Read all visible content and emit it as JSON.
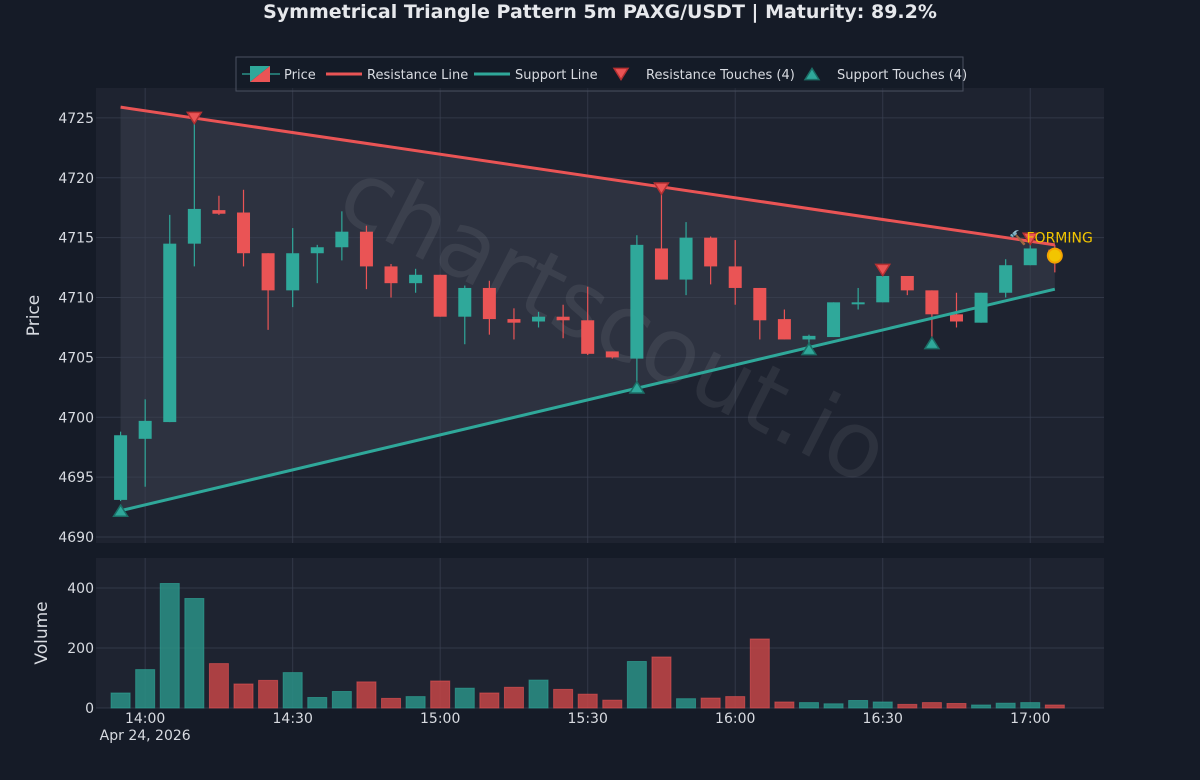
{
  "chart_data": {
    "type": "candlestick",
    "title": "Symmetrical Triangle Pattern 5m PAXG/USDT | Maturity: 89.2%",
    "watermark": "chartscout.io",
    "legend": {
      "placement": "top",
      "items": [
        "Price",
        "Resistance Line",
        "Support Line",
        "Resistance Touches (4)",
        "Support Touches (4)"
      ]
    },
    "price_panel": {
      "ylabel": "Price",
      "ylim": [
        4689.5,
        4727.5
      ],
      "yticks": [
        4690,
        4695,
        4700,
        4705,
        4710,
        4715,
        4720,
        4725
      ]
    },
    "volume_panel": {
      "ylabel": "Volume",
      "ylim": [
        0,
        500
      ],
      "yticks": [
        0,
        200,
        400
      ]
    },
    "x_axis": {
      "xlim": [
        "13:50",
        "17:15"
      ],
      "ticks": [
        {
          "t": "14:00",
          "label": "14:00",
          "sublabel": "Apr 24, 2026"
        },
        {
          "t": "14:30",
          "label": "14:30"
        },
        {
          "t": "15:00",
          "label": "15:00"
        },
        {
          "t": "15:30",
          "label": "15:30"
        },
        {
          "t": "16:00",
          "label": "16:00"
        },
        {
          "t": "16:30",
          "label": "16:30"
        },
        {
          "t": "17:00",
          "label": "17:00"
        }
      ]
    },
    "candles": [
      {
        "t": "13:55",
        "o": 4693.1,
        "h": 4698.8,
        "l": 4693.0,
        "c": 4698.5,
        "v": 50
      },
      {
        "t": "14:00",
        "o": 4698.2,
        "h": 4701.5,
        "l": 4694.2,
        "c": 4699.7,
        "v": 128
      },
      {
        "t": "14:05",
        "o": 4699.6,
        "h": 4716.9,
        "l": 4699.6,
        "c": 4714.5,
        "v": 415
      },
      {
        "t": "14:10",
        "o": 4714.5,
        "h": 4725.2,
        "l": 4712.6,
        "c": 4717.4,
        "v": 365
      },
      {
        "t": "14:15",
        "o": 4717.3,
        "h": 4718.5,
        "l": 4716.9,
        "c": 4717.0,
        "v": 148
      },
      {
        "t": "14:20",
        "o": 4717.1,
        "h": 4719.0,
        "l": 4712.6,
        "c": 4713.7,
        "v": 80
      },
      {
        "t": "14:25",
        "o": 4713.7,
        "h": 4713.7,
        "l": 4707.3,
        "c": 4710.6,
        "v": 92
      },
      {
        "t": "14:30",
        "o": 4710.6,
        "h": 4715.8,
        "l": 4709.2,
        "c": 4713.7,
        "v": 118
      },
      {
        "t": "14:35",
        "o": 4713.7,
        "h": 4714.4,
        "l": 4711.2,
        "c": 4714.2,
        "v": 35
      },
      {
        "t": "14:40",
        "o": 4714.2,
        "h": 4717.2,
        "l": 4713.1,
        "c": 4715.5,
        "v": 55
      },
      {
        "t": "14:45",
        "o": 4715.5,
        "h": 4716.0,
        "l": 4710.7,
        "c": 4712.6,
        "v": 87
      },
      {
        "t": "14:50",
        "o": 4712.6,
        "h": 4712.8,
        "l": 4710.0,
        "c": 4711.2,
        "v": 32
      },
      {
        "t": "14:55",
        "o": 4711.2,
        "h": 4712.4,
        "l": 4710.4,
        "c": 4711.9,
        "v": 38
      },
      {
        "t": "15:00",
        "o": 4711.9,
        "h": 4711.9,
        "l": 4708.4,
        "c": 4708.4,
        "v": 90
      },
      {
        "t": "15:05",
        "o": 4708.4,
        "h": 4711.0,
        "l": 4706.1,
        "c": 4710.8,
        "v": 66
      },
      {
        "t": "15:10",
        "o": 4710.8,
        "h": 4711.4,
        "l": 4706.9,
        "c": 4708.2,
        "v": 50
      },
      {
        "t": "15:15",
        "o": 4708.2,
        "h": 4709.1,
        "l": 4706.5,
        "c": 4707.9,
        "v": 69
      },
      {
        "t": "15:20",
        "o": 4708.0,
        "h": 4708.8,
        "l": 4707.5,
        "c": 4708.4,
        "v": 93
      },
      {
        "t": "15:25",
        "o": 4708.4,
        "h": 4709.4,
        "l": 4706.6,
        "c": 4708.1,
        "v": 62
      },
      {
        "t": "15:30",
        "o": 4708.1,
        "h": 4710.9,
        "l": 4705.2,
        "c": 4705.3,
        "v": 46
      },
      {
        "t": "15:35",
        "o": 4705.5,
        "h": 4705.5,
        "l": 4704.9,
        "c": 4705.0,
        "v": 26
      },
      {
        "t": "15:40",
        "o": 4704.9,
        "h": 4715.2,
        "l": 4702.3,
        "c": 4714.4,
        "v": 155
      },
      {
        "t": "15:45",
        "o": 4714.1,
        "h": 4719.1,
        "l": 4711.5,
        "c": 4711.5,
        "v": 170
      },
      {
        "t": "15:50",
        "o": 4711.5,
        "h": 4716.3,
        "l": 4710.2,
        "c": 4715.0,
        "v": 31
      },
      {
        "t": "15:55",
        "o": 4715.0,
        "h": 4715.1,
        "l": 4711.1,
        "c": 4712.6,
        "v": 33
      },
      {
        "t": "16:00",
        "o": 4712.6,
        "h": 4714.8,
        "l": 4709.4,
        "c": 4710.8,
        "v": 38
      },
      {
        "t": "16:05",
        "o": 4710.8,
        "h": 4710.8,
        "l": 4706.5,
        "c": 4708.1,
        "v": 230
      },
      {
        "t": "16:10",
        "o": 4708.2,
        "h": 4709.0,
        "l": 4706.5,
        "c": 4706.5,
        "v": 20
      },
      {
        "t": "16:15",
        "o": 4706.5,
        "h": 4706.9,
        "l": 4705.7,
        "c": 4706.8,
        "v": 18
      },
      {
        "t": "16:20",
        "o": 4706.7,
        "h": 4709.6,
        "l": 4706.7,
        "c": 4709.6,
        "v": 14
      },
      {
        "t": "16:25",
        "o": 4709.6,
        "h": 4710.8,
        "l": 4709.0,
        "c": 4709.6,
        "v": 25
      },
      {
        "t": "16:30",
        "o": 4709.6,
        "h": 4712.3,
        "l": 4709.6,
        "c": 4711.8,
        "v": 20
      },
      {
        "t": "16:35",
        "o": 4711.8,
        "h": 4711.8,
        "l": 4710.2,
        "c": 4710.6,
        "v": 12
      },
      {
        "t": "16:40",
        "o": 4710.6,
        "h": 4710.6,
        "l": 4706.4,
        "c": 4708.6,
        "v": 18
      },
      {
        "t": "16:45",
        "o": 4708.6,
        "h": 4710.4,
        "l": 4707.5,
        "c": 4708.0,
        "v": 15
      },
      {
        "t": "16:50",
        "o": 4707.9,
        "h": 4710.4,
        "l": 4707.9,
        "c": 4710.4,
        "v": 10
      },
      {
        "t": "16:55",
        "o": 4710.4,
        "h": 4713.2,
        "l": 4710.0,
        "c": 4712.7,
        "v": 16
      },
      {
        "t": "17:00",
        "o": 4712.7,
        "h": 4715.0,
        "l": 4712.7,
        "c": 4714.1,
        "v": 18
      },
      {
        "t": "17:05",
        "o": 4714.0,
        "h": 4714.4,
        "l": 4712.1,
        "c": 4713.8,
        "v": 10
      }
    ],
    "resistance_line": {
      "start": {
        "t": "13:55",
        "p": 4725.9
      },
      "end": {
        "t": "17:05",
        "p": 4714.4
      }
    },
    "support_line": {
      "start": {
        "t": "13:55",
        "p": 4692.2
      },
      "end": {
        "t": "17:05",
        "p": 4710.7
      }
    },
    "resistance_touches": [
      {
        "t": "14:10",
        "p": 4725.0
      },
      {
        "t": "15:45",
        "p": 4719.1
      },
      {
        "t": "16:30",
        "p": 4712.3
      },
      {
        "t": "17:00",
        "p": 4714.9
      }
    ],
    "support_touches": [
      {
        "t": "13:55",
        "p": 4692.2
      },
      {
        "t": "15:40",
        "p": 4702.5
      },
      {
        "t": "16:15",
        "p": 4705.7
      },
      {
        "t": "16:40",
        "p": 4706.2
      }
    ],
    "current_point": {
      "t": "17:05",
      "p": 4713.5
    },
    "status_label": "🔨FORMING",
    "colors": {
      "background": "#151b27",
      "plot_bg": "#1e2330",
      "grid": "#3b4252",
      "up": "#2fa89a",
      "down": "#ea5455",
      "up_volume": "#2a9186",
      "down_volume": "#c44547",
      "resistance": "#ea5455",
      "support": "#2fa89a",
      "forming": "#f2c500",
      "triangle_fill": "#3a3f4e",
      "text": "#d8dbe1"
    }
  }
}
